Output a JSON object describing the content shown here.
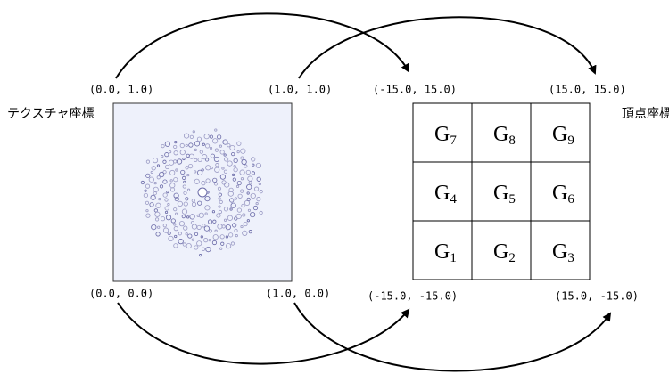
{
  "texture": {
    "title": "テクスチャ座標",
    "corners": {
      "top_left": "(0.0, 1.0)",
      "top_right": "(1.0, 1.0)",
      "bottom_left": "(0.0, 0.0)",
      "bottom_right": "(1.0, 0.0)"
    }
  },
  "vertex": {
    "title": "頂点座標",
    "corners": {
      "top_left": "(-15.0, 15.0)",
      "top_right": "(15.0, 15.0)",
      "bottom_left": "(-15.0, -15.0)",
      "bottom_right": "(15.0, -15.0)"
    },
    "grid": {
      "rows": [
        [
          {
            "base": "G",
            "sub": "7"
          },
          {
            "base": "G",
            "sub": "8"
          },
          {
            "base": "G",
            "sub": "9"
          }
        ],
        [
          {
            "base": "G",
            "sub": "4"
          },
          {
            "base": "G",
            "sub": "5"
          },
          {
            "base": "G",
            "sub": "6"
          }
        ],
        [
          {
            "base": "G",
            "sub": "1"
          },
          {
            "base": "G",
            "sub": "2"
          },
          {
            "base": "G",
            "sub": "3"
          }
        ]
      ]
    }
  }
}
